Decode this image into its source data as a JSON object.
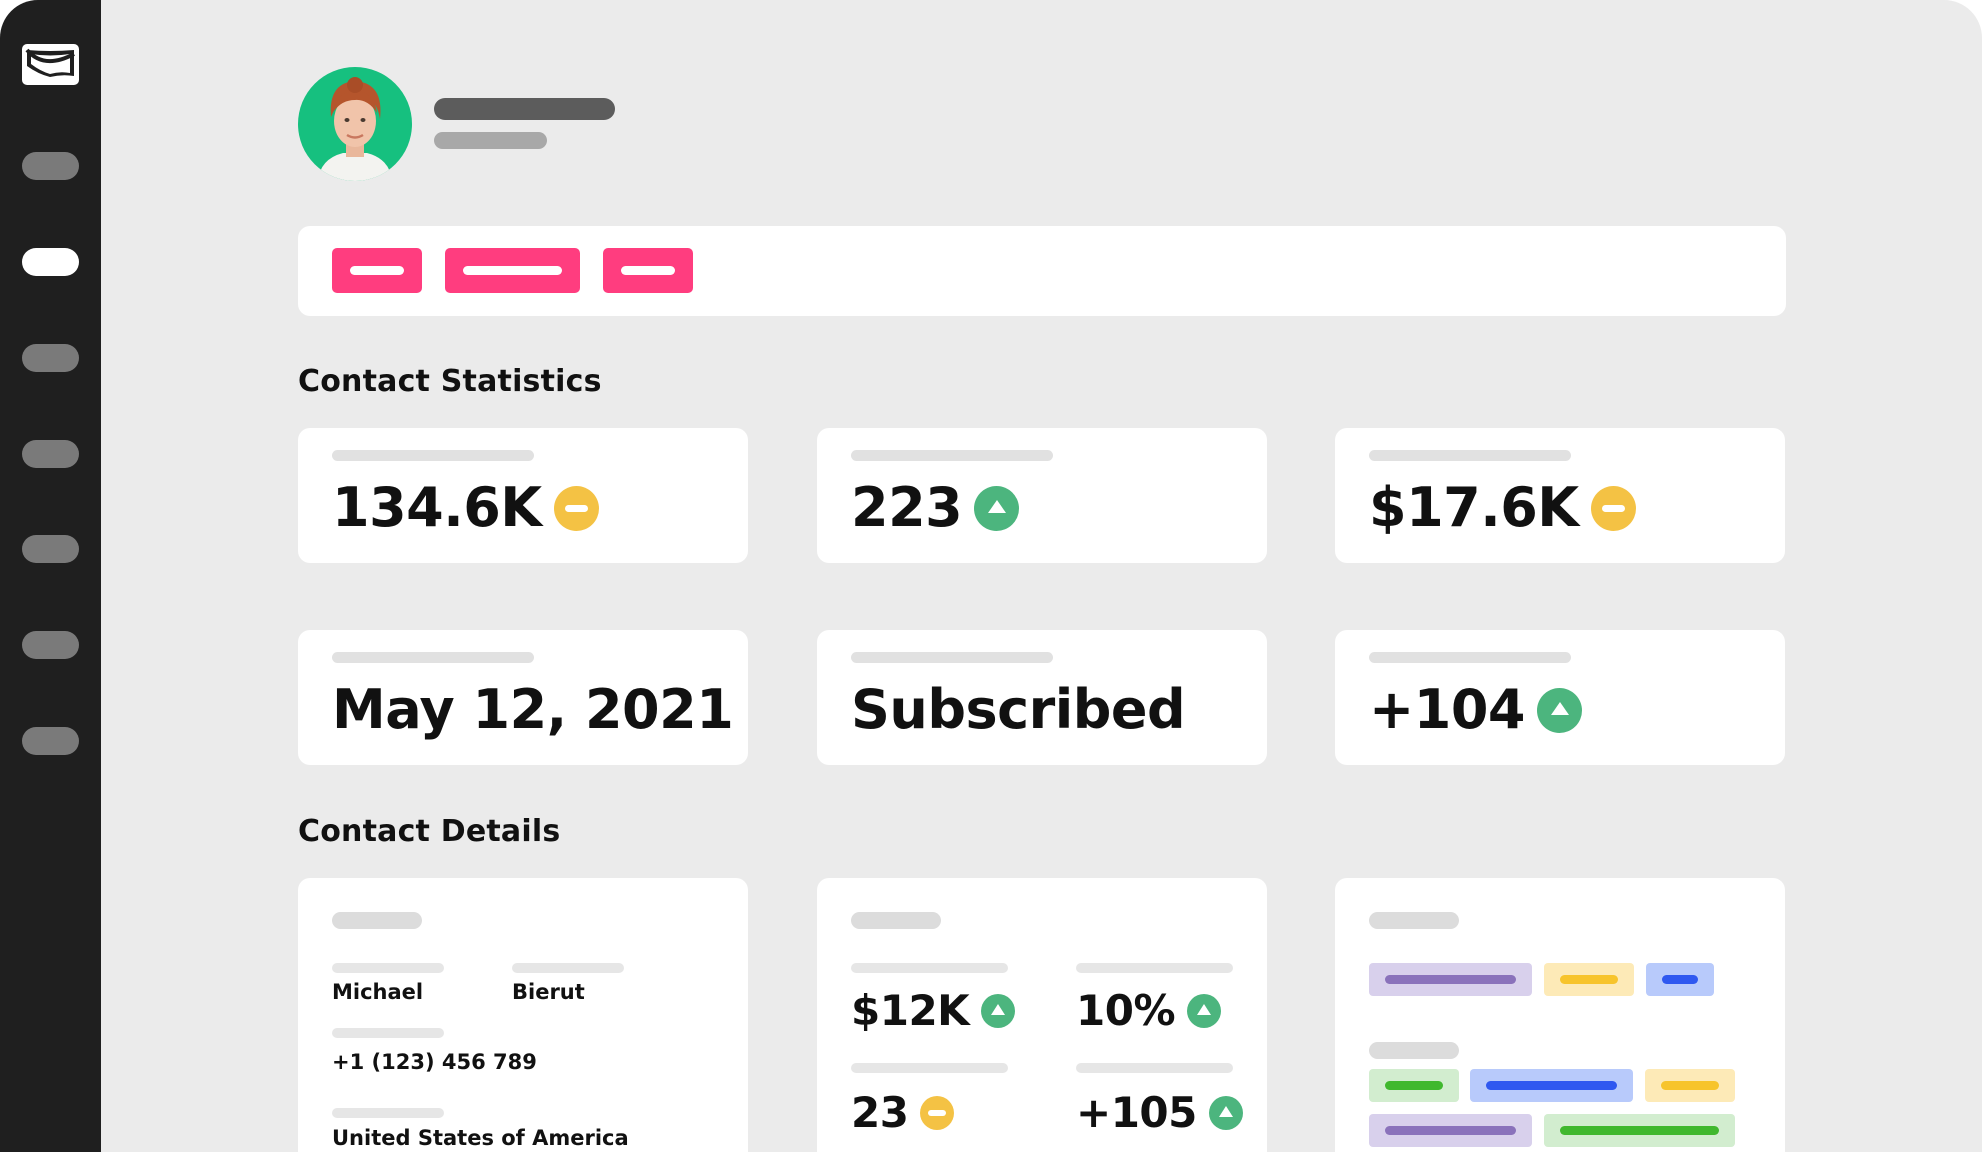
{
  "colors": {
    "sidebar": "#1f1f1f",
    "accent_pink": "#ff3d7f",
    "avatar_bg": "#16c07f",
    "up": "#4cb57e",
    "neutral": "#f4c244"
  },
  "sidebar": {
    "items": [
      "mail-icon",
      "nav-item-1",
      "nav-item-2",
      "nav-item-3",
      "nav-item-4",
      "nav-item-5",
      "nav-item-6",
      "nav-item-7"
    ],
    "active_index": 2
  },
  "sections": {
    "statistics_title": "Contact Statistics",
    "details_title": "Contact Details"
  },
  "stats": [
    {
      "value": "134.6K",
      "trend": "neutral"
    },
    {
      "value": "223",
      "trend": "up"
    },
    {
      "value": "$17.6K",
      "trend": "neutral"
    },
    {
      "value": "May 12, 2021",
      "trend": "none"
    },
    {
      "value": "Subscribed",
      "trend": "none"
    },
    {
      "value": "+104",
      "trend": "up"
    }
  ],
  "details": {
    "first_name": "Michael",
    "last_name": "Bierut",
    "phone": "+1 (123) 456 789",
    "country": "United States of America"
  },
  "metrics": [
    {
      "value": "$12K",
      "trend": "up"
    },
    {
      "value": "10%",
      "trend": "up"
    },
    {
      "value": "23",
      "trend": "neutral"
    },
    {
      "value": "+105",
      "trend": "up"
    }
  ]
}
